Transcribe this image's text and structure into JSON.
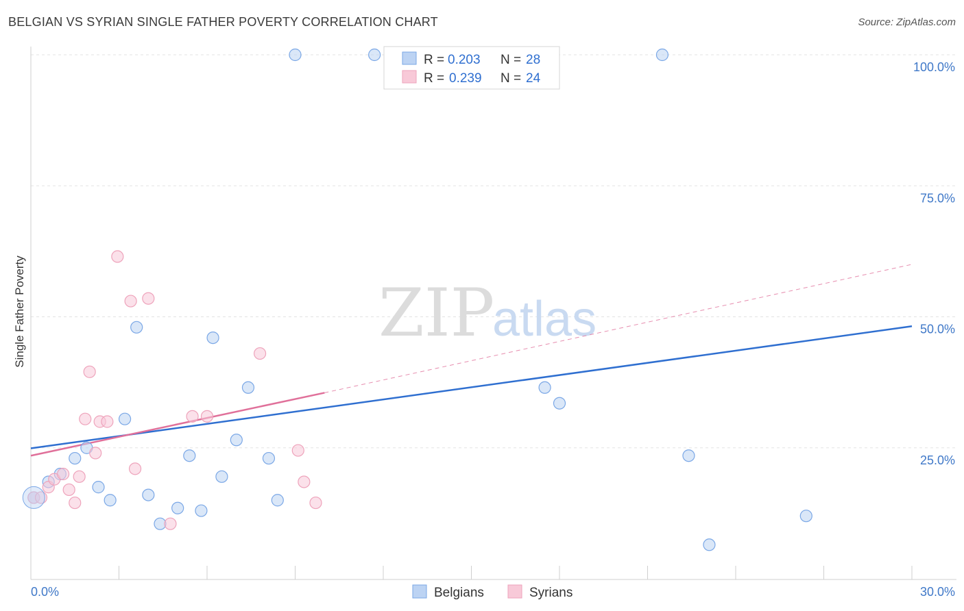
{
  "title": "BELGIAN VS SYRIAN SINGLE FATHER POVERTY CORRELATION CHART",
  "source": "Source: ZipAtlas.com",
  "watermark": {
    "zip": "ZIP",
    "atlas": "atlas"
  },
  "chart_data": {
    "type": "scatter",
    "title": "BELGIAN VS SYRIAN SINGLE FATHER POVERTY CORRELATION CHART",
    "xlabel": "",
    "ylabel": "Single Father Poverty",
    "xlim": [
      0,
      30
    ],
    "ylim": [
      0,
      105
    ],
    "x_ticks": [
      "0.0%",
      "30.0%"
    ],
    "y_ticks": [
      {
        "value": 25,
        "label": "25.0%"
      },
      {
        "value": 50,
        "label": "50.0%"
      },
      {
        "value": 75,
        "label": "75.0%"
      },
      {
        "value": 100,
        "label": "100.0%"
      }
    ],
    "grid": true,
    "legend_position": "top-center",
    "series": [
      {
        "name": "Belgians",
        "color": "#7aa7e6",
        "fill": "#bcd3f3",
        "line_color": "#2f6fd0",
        "R": "0.203",
        "N": "28",
        "trend": {
          "x0": 0,
          "y0": 24.9,
          "x1": 30,
          "y1": 48.2,
          "dashed_ext": false
        },
        "points": [
          [
            0.1,
            15.5
          ],
          [
            0.6,
            18.5
          ],
          [
            1.0,
            20.0
          ],
          [
            1.5,
            23.0
          ],
          [
            1.9,
            25.0
          ],
          [
            2.3,
            17.5
          ],
          [
            2.7,
            15.0
          ],
          [
            3.2,
            30.5
          ],
          [
            3.6,
            48.0
          ],
          [
            4.0,
            16.0
          ],
          [
            4.4,
            10.5
          ],
          [
            5.0,
            13.5
          ],
          [
            5.4,
            23.5
          ],
          [
            5.8,
            13.0
          ],
          [
            6.2,
            46.0
          ],
          [
            6.5,
            19.5
          ],
          [
            7.0,
            26.5
          ],
          [
            7.4,
            36.5
          ],
          [
            8.1,
            23.0
          ],
          [
            8.4,
            15.0
          ],
          [
            9.0,
            100.0
          ],
          [
            11.7,
            100.0
          ],
          [
            17.5,
            36.5
          ],
          [
            18.0,
            33.5
          ],
          [
            21.5,
            100.0
          ],
          [
            22.4,
            23.5
          ],
          [
            23.1,
            6.5
          ],
          [
            26.4,
            12.0
          ]
        ]
      },
      {
        "name": "Syrians",
        "color": "#eea3bb",
        "fill": "#f8c9d8",
        "line_color": "#e0709a",
        "R": "0.239",
        "N": "24",
        "trend": {
          "x0": 0,
          "y0": 23.5,
          "x1": 10,
          "y1": 35.5,
          "ext_x1": 30,
          "ext_y1": 60.0
        },
        "points": [
          [
            0.1,
            15.5
          ],
          [
            0.35,
            15.5
          ],
          [
            0.6,
            17.5
          ],
          [
            0.8,
            19.0
          ],
          [
            1.1,
            20.0
          ],
          [
            1.3,
            17.0
          ],
          [
            1.5,
            14.5
          ],
          [
            1.65,
            19.5
          ],
          [
            1.85,
            30.5
          ],
          [
            2.0,
            39.5
          ],
          [
            2.2,
            24.0
          ],
          [
            2.35,
            30.0
          ],
          [
            2.6,
            30.0
          ],
          [
            2.95,
            61.5
          ],
          [
            3.4,
            53.0
          ],
          [
            3.55,
            21.0
          ],
          [
            4.0,
            53.5
          ],
          [
            4.75,
            10.5
          ],
          [
            5.5,
            31.0
          ],
          [
            6.0,
            31.0
          ],
          [
            7.8,
            43.0
          ],
          [
            9.1,
            24.5
          ],
          [
            9.3,
            18.5
          ],
          [
            9.7,
            14.5
          ]
        ]
      }
    ]
  },
  "legend": {
    "r_label": "R =",
    "n_label": "N ="
  }
}
